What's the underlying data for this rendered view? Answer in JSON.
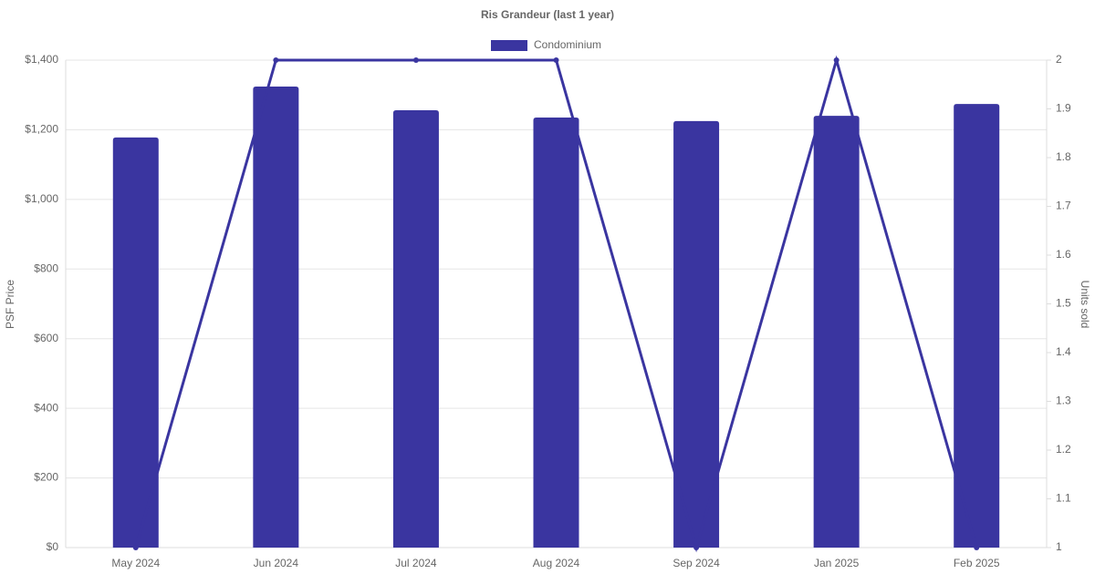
{
  "chart_data": {
    "type": "bar-line",
    "title": "Ris Grandeur (last 1 year)",
    "categories": [
      "May 2024",
      "Jun 2024",
      "Jul 2024",
      "Aug 2024",
      "Sep 2024",
      "Jan 2025",
      "Feb 2025"
    ],
    "series": [
      {
        "name": "Condominium",
        "type": "bar",
        "color": "#3a35a0",
        "values": [
          1178,
          1324,
          1256,
          1235,
          1225,
          1240,
          1274
        ]
      },
      {
        "type": "line",
        "axis": "y2",
        "color": "#3a35a0",
        "values": [
          1,
          2,
          2,
          2,
          1,
          2,
          1
        ]
      }
    ],
    "ylabel": "PSF Price",
    "y2label": "Units sold",
    "ylim": [
      0,
      1400
    ],
    "yticks": [
      {
        "value": 0,
        "label": "$0"
      },
      {
        "value": 200,
        "label": "$200"
      },
      {
        "value": 400,
        "label": "$400"
      },
      {
        "value": 600,
        "label": "$600"
      },
      {
        "value": 800,
        "label": "$800"
      },
      {
        "value": 1000,
        "label": "$1,000"
      },
      {
        "value": 1200,
        "label": "$1,200"
      },
      {
        "value": 1400,
        "label": "$1,400"
      }
    ],
    "y2lim": [
      1,
      2
    ],
    "y2ticks": [
      1,
      1.1,
      1.2,
      1.3,
      1.4,
      1.5,
      1.6,
      1.7,
      1.8,
      1.9,
      2
    ],
    "grid": true,
    "legend": "top"
  }
}
